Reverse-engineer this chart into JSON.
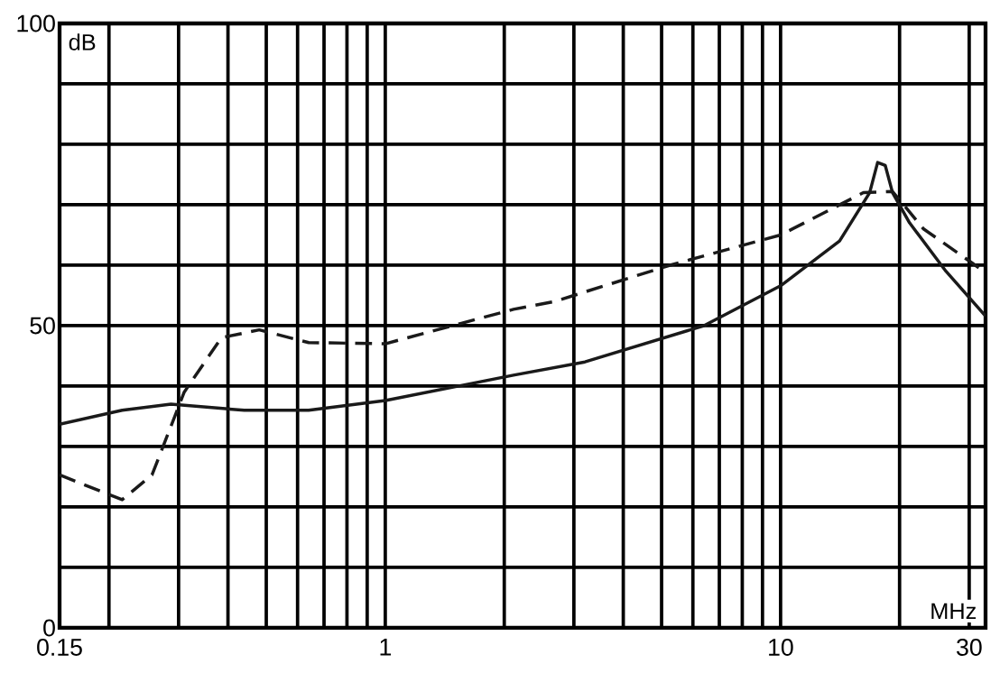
{
  "chart_data": {
    "type": "line",
    "xlabel": "MHz",
    "ylabel": "dB",
    "log": "x",
    "grid": true,
    "xlim": [
      0.15,
      33
    ],
    "ylim": [
      0,
      100
    ],
    "xticks": [
      0.15,
      {
        "value": 0.2,
        "label": null
      },
      {
        "value": 0.3,
        "label": null
      },
      {
        "value": 0.4,
        "label": null
      },
      {
        "value": 0.5,
        "label": null
      },
      {
        "value": 0.6,
        "label": null
      },
      {
        "value": 0.7,
        "label": null
      },
      {
        "value": 0.8,
        "label": null
      },
      {
        "value": 0.9,
        "label": null
      },
      1,
      {
        "value": 2,
        "label": null
      },
      {
        "value": 3,
        "label": null
      },
      {
        "value": 4,
        "label": null
      },
      {
        "value": 5,
        "label": null
      },
      {
        "value": 6,
        "label": null
      },
      {
        "value": 7,
        "label": null
      },
      {
        "value": 8,
        "label": null
      },
      {
        "value": 9,
        "label": null
      },
      10,
      {
        "value": 20,
        "label": null
      },
      30
    ],
    "yticks": [
      0,
      {
        "value": 10,
        "label": null
      },
      {
        "value": 20,
        "label": null
      },
      {
        "value": 30,
        "label": null
      },
      {
        "value": 40,
        "label": null
      },
      50,
      {
        "value": 60,
        "label": null
      },
      {
        "value": 70,
        "label": null
      },
      {
        "value": 80,
        "label": null
      },
      {
        "value": 90,
        "label": null
      },
      100
    ],
    "series": [
      {
        "color": "#1a1a1a",
        "line_style": "solid",
        "x": [
          0.15,
          0.216,
          0.287,
          0.44,
          0.64,
          1,
          2.11,
          3.2,
          6.4,
          10,
          14.1,
          16.8,
          17.6,
          18.4,
          19.2,
          21.2,
          26.2,
          33
        ],
        "values": [
          33.7,
          36,
          37,
          36,
          36,
          37.6,
          41.8,
          44,
          50,
          56.6,
          64,
          72,
          77,
          76.5,
          72,
          67,
          59,
          51.6
        ]
      },
      {
        "color": "#1a1a1a",
        "line_style": "dashed",
        "x": [
          0.15,
          0.216,
          0.257,
          0.31,
          0.385,
          0.48,
          0.64,
          1,
          2.11,
          2.68,
          5.25,
          10,
          16.2,
          19.2,
          23,
          33
        ],
        "values": [
          25.3,
          21.2,
          25.3,
          39,
          48,
          49.3,
          47.2,
          47,
          52.7,
          54,
          60,
          65,
          72,
          72.2,
          66,
          58.8
        ]
      }
    ]
  }
}
